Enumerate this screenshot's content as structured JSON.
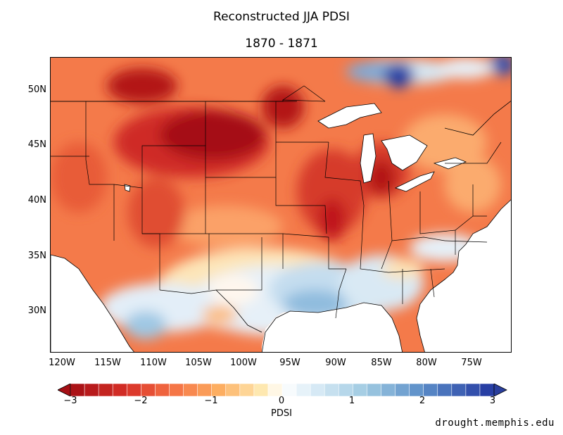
{
  "title": "Reconstructed JJA PDSI",
  "subtitle": "1870 - 1871",
  "lat_labels": [
    "50N",
    "45N",
    "40N",
    "35N",
    "30N"
  ],
  "lon_labels": [
    "120W",
    "115W",
    "110W",
    "105W",
    "100W",
    "95W",
    "90W",
    "85W",
    "80W",
    "75W"
  ],
  "colorbar": {
    "label": "PDSI",
    "ticks": [
      "−3",
      "−2",
      "−1",
      "0",
      "1",
      "2",
      "3"
    ],
    "min": -3,
    "max": 3
  },
  "credit": "drought.memphis.edu",
  "colors": {
    "dry_extreme": "#a50f15",
    "dry_strong": "#d73027",
    "dry_moderate": "#f46d43",
    "dry_mild": "#fdae61",
    "near_normal_dry": "#fee8b0",
    "neutral": "#ffffff",
    "wet_mild": "#d6e9f5",
    "wet_moderate": "#9ecae1",
    "wet_strong": "#4a7bc0",
    "wet_extreme": "#1f3fa0"
  }
}
